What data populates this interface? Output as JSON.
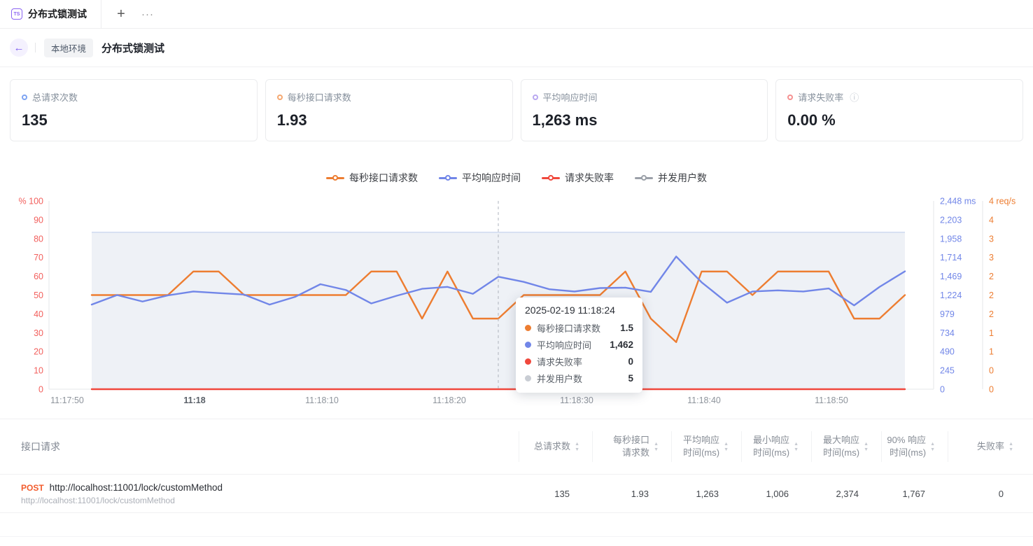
{
  "tab_bar": {
    "tab_icon_text": "TS",
    "active_tab_label": "分布式锁测试",
    "new_tab_icon": "+",
    "more_icon": "···"
  },
  "header": {
    "back_icon": "←",
    "env_badge": "本地环境",
    "title": "分布式锁测试"
  },
  "stats": [
    {
      "label": "总请求次数",
      "value": "135",
      "color": "#7EA4F2"
    },
    {
      "label": "每秒接口请求数",
      "value": "1.93",
      "color": "#F5A871"
    },
    {
      "label": "平均响应时间",
      "value": "1,263 ms",
      "color": "#B9A8F0"
    },
    {
      "label": "请求失败率",
      "value": "0.00 %",
      "color": "#F59191",
      "info_icon": "ⓘ"
    }
  ],
  "chart_data": {
    "type": "line",
    "x": [
      "11:17:52",
      "11:17:54",
      "11:17:56",
      "11:17:58",
      "11:18:00",
      "11:18:02",
      "11:18:04",
      "11:18:06",
      "11:18:08",
      "11:18:10",
      "11:18:12",
      "11:18:14",
      "11:18:16",
      "11:18:18",
      "11:18:20",
      "11:18:22",
      "11:18:24",
      "11:18:26",
      "11:18:28",
      "11:18:30",
      "11:18:32",
      "11:18:34",
      "11:18:36",
      "11:18:38",
      "11:18:40",
      "11:18:42",
      "11:18:44",
      "11:18:46",
      "11:18:48",
      "11:18:50",
      "11:18:52",
      "11:18:54",
      "11:18:56"
    ],
    "series": [
      {
        "name": "每秒接口请求数",
        "color": "#ED7D31",
        "axis_max": 4,
        "values": [
          2,
          2,
          2,
          2,
          2.5,
          2.5,
          2,
          2,
          2,
          2,
          2,
          2.5,
          2.5,
          1.5,
          2.5,
          1.5,
          1.5,
          2,
          2,
          2,
          2,
          2.5,
          1.5,
          1,
          2.5,
          2.5,
          2,
          2.5,
          2.5,
          2.5,
          1.5,
          1.5,
          2
        ]
      },
      {
        "name": "平均响应时间",
        "color": "#7186E8",
        "axis_max": 2448,
        "values": [
          1100,
          1224,
          1140,
          1220,
          1270,
          1250,
          1230,
          1100,
          1200,
          1365,
          1290,
          1115,
          1215,
          1305,
          1330,
          1240,
          1462,
          1395,
          1300,
          1270,
          1315,
          1320,
          1265,
          1725,
          1390,
          1125,
          1270,
          1285,
          1270,
          1310,
          1090,
          1330,
          1532
        ]
      },
      {
        "name": "请求失败率",
        "color": "#F0483C",
        "axis_max": 100,
        "values": [
          0,
          0,
          0,
          0,
          0,
          0,
          0,
          0,
          0,
          0,
          0,
          0,
          0,
          0,
          0,
          0,
          0,
          0,
          0,
          0,
          0,
          0,
          0,
          0,
          0,
          0,
          0,
          0,
          0,
          0,
          0,
          0,
          0
        ]
      },
      {
        "name": "并发用户数",
        "color": "#9BA0A8",
        "axis_max": 6,
        "area": true,
        "area_fill": "#EEF1F6",
        "area_top_stroke": "#CBD7EF",
        "values": [
          5,
          5,
          5,
          5,
          5,
          5,
          5,
          5,
          5,
          5,
          5,
          5,
          5,
          5,
          5,
          5,
          5,
          5,
          5,
          5,
          5,
          5,
          5,
          5,
          5,
          5,
          5,
          5,
          5,
          5,
          5,
          5,
          5
        ]
      }
    ],
    "axes": {
      "left_percent": {
        "color": "#F25F5C",
        "labels_top_to_bottom": [
          "% 100",
          "90",
          "80",
          "70",
          "60",
          "50",
          "40",
          "30",
          "20",
          "10",
          "0"
        ]
      },
      "right_ms": {
        "color": "#7186E8",
        "labels_top_to_bottom": [
          "2,448 ms",
          "2,203",
          "1,958",
          "1,714",
          "1,469",
          "1,224",
          "979",
          "734",
          "490",
          "245",
          "0"
        ]
      },
      "right_rps": {
        "color": "#ED7D31",
        "labels_top_to_bottom": [
          "4 req/s",
          "4",
          "3",
          "3",
          "2",
          "2",
          "2",
          "1",
          "1",
          "0",
          "0"
        ]
      },
      "x_ticks": [
        {
          "label": "11:17:50",
          "emphasis": false
        },
        {
          "label": "11:18",
          "emphasis": true
        },
        {
          "label": "11:18:10",
          "emphasis": false
        },
        {
          "label": "11:18:20",
          "emphasis": false
        },
        {
          "label": "11:18:30",
          "emphasis": false
        },
        {
          "label": "11:18:40",
          "emphasis": false
        },
        {
          "label": "11:18:50",
          "emphasis": false
        }
      ]
    },
    "crosshair_index": 16
  },
  "chart_tooltip": {
    "title": "2025-02-19 11:18:24",
    "rows": [
      {
        "label": "每秒接口请求数",
        "value": "1.5",
        "color": "#ED7D31"
      },
      {
        "label": "平均响应时间",
        "value": "1,462",
        "color": "#7186E8"
      },
      {
        "label": "请求失败率",
        "value": "0",
        "color": "#F0483C"
      },
      {
        "label": "并发用户数",
        "value": "5",
        "color": "#C9CDD4"
      }
    ]
  },
  "table": {
    "title": "接口请求",
    "sort_icon_up": "▲",
    "sort_icon_down": "▼",
    "columns": [
      {
        "line1": "总请求数",
        "line2": ""
      },
      {
        "line1": "每秒接口",
        "line2": "请求数"
      },
      {
        "line1": "平均响应",
        "line2": "时间(ms)"
      },
      {
        "line1": "最小响应",
        "line2": "时间(ms)"
      },
      {
        "line1": "最大响应",
        "line2": "时间(ms)"
      },
      {
        "line1": "90% 响应",
        "line2": "时间(ms)"
      },
      {
        "line1": "失败率",
        "line2": ""
      }
    ],
    "row": {
      "method": "POST",
      "url": "http://localhost:11001/lock/customMethod",
      "sub_url": "http://localhost:11001/lock/customMethod",
      "values": [
        "135",
        "1.93",
        "1,263",
        "1,006",
        "2,374",
        "1,767",
        "0"
      ]
    }
  }
}
